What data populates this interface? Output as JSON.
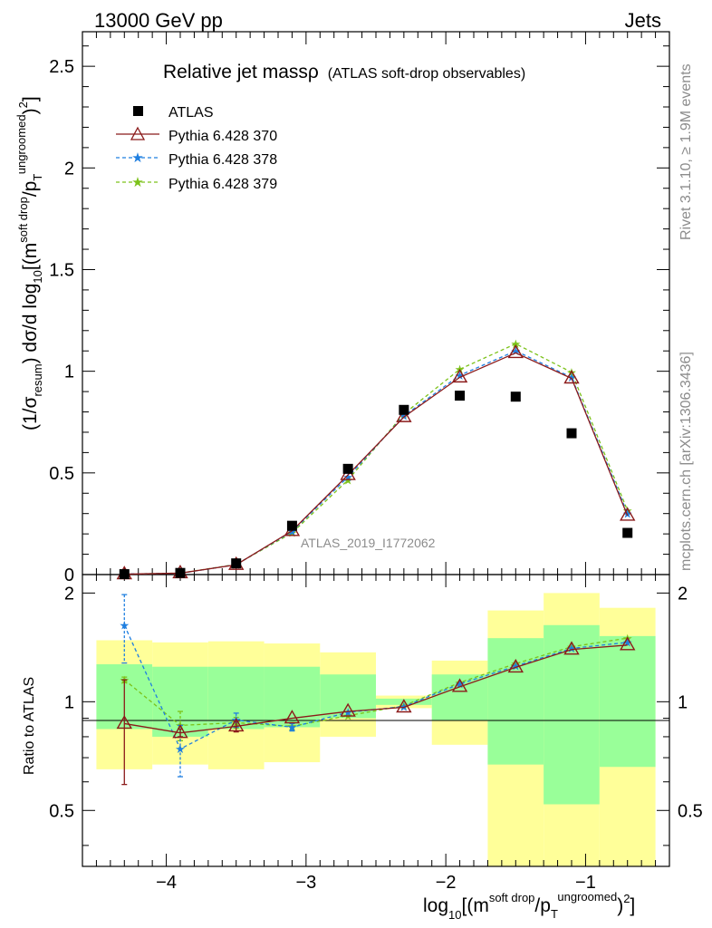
{
  "header": {
    "left": "13000 GeV pp",
    "right": "Jets"
  },
  "plot": {
    "title_main": "Relative jet massρ",
    "title_sub": "(ATLAS soft-drop observables)",
    "watermark": "ATLAS_2019_I1772062",
    "side_top": "Rivet 3.1.10, ≥ 1.9M events",
    "side_bottom": "mcplots.cern.ch [arXiv:1306.3436]"
  },
  "colors": {
    "data": "#000000",
    "py370": "#8b1a1a",
    "py378": "#1f7fe0",
    "py379": "#7cc21a",
    "band_outer": "#ffff99",
    "band_inner": "#99ff99"
  },
  "chart_data": [
    {
      "type": "line",
      "panel": "main",
      "ylabel_parts": [
        "(1/σ",
        "resum",
        ") dσ/d log",
        "10",
        "[(m",
        "soft drop",
        "/p",
        "T",
        "ungroomed",
        ")",
        "2",
        "]"
      ],
      "xlim": [
        -4.6,
        -0.4
      ],
      "ylim": [
        0,
        2.67
      ],
      "yticks": [
        0,
        0.5,
        1,
        1.5,
        2,
        2.5
      ],
      "ytick_labels": [
        "0",
        "0.5",
        "1",
        "1.5",
        "2",
        "2.5"
      ],
      "legend_position": "top-left",
      "x": [
        -4.3,
        -3.9,
        -3.5,
        -3.1,
        -2.7,
        -2.3,
        -1.9,
        -1.5,
        -1.1,
        -0.7
      ],
      "series": [
        {
          "name": "ATLAS",
          "values": [
            0.002,
            0.008,
            0.055,
            0.24,
            0.52,
            0.81,
            0.88,
            0.875,
            0.695,
            0.205
          ]
        },
        {
          "name": "Pythia 6.428 370",
          "values": [
            0.002,
            0.007,
            0.048,
            0.215,
            0.49,
            0.775,
            0.97,
            1.09,
            0.965,
            0.29
          ]
        },
        {
          "name": "Pythia 6.428 378",
          "values": [
            0.003,
            0.006,
            0.049,
            0.212,
            0.48,
            0.78,
            0.98,
            1.1,
            0.97,
            0.3
          ]
        },
        {
          "name": "Pythia 6.428 379",
          "values": [
            0.0025,
            0.007,
            0.05,
            0.205,
            0.465,
            0.79,
            1.01,
            1.135,
            0.995,
            0.315
          ]
        }
      ]
    },
    {
      "type": "line",
      "panel": "ratio",
      "xlabel_parts": [
        "log",
        "10",
        "[(m",
        "soft drop",
        "/p",
        "T",
        "ungroomed",
        ")",
        "2",
        "]"
      ],
      "ylabel": "Ratio to ATLAS",
      "xlim": [
        -4.6,
        -0.4
      ],
      "ylim": [
        0.35,
        2.25
      ],
      "yticks": [
        0.5,
        1,
        2
      ],
      "ytick_labels": [
        "0.5",
        "1",
        "2"
      ],
      "xticks": [
        -4,
        -3,
        -2,
        -1
      ],
      "xtick_labels": [
        "−4",
        "−3",
        "−2",
        "−1"
      ],
      "bins": [
        [
          -4.5,
          -4.1
        ],
        [
          -4.1,
          -3.7
        ],
        [
          -3.7,
          -3.3
        ],
        [
          -3.3,
          -2.9
        ],
        [
          -2.9,
          -2.5
        ],
        [
          -2.5,
          -2.1
        ],
        [
          -2.1,
          -1.7
        ],
        [
          -1.7,
          -1.3
        ],
        [
          -1.3,
          -0.9
        ],
        [
          -0.9,
          -0.5
        ]
      ],
      "band_outer": [
        [
          0.65,
          1.48
        ],
        [
          0.67,
          1.46
        ],
        [
          0.65,
          1.47
        ],
        [
          0.68,
          1.45
        ],
        [
          0.8,
          1.37
        ],
        [
          0.96,
          1.04
        ],
        [
          0.76,
          1.3
        ],
        [
          0.35,
          1.79
        ],
        [
          0.35,
          2.0
        ],
        [
          0.35,
          1.82
        ]
      ],
      "band_inner": [
        [
          0.84,
          1.27
        ],
        [
          0.8,
          1.25
        ],
        [
          0.84,
          1.25
        ],
        [
          0.85,
          1.25
        ],
        [
          0.9,
          1.19
        ],
        [
          0.98,
          1.02
        ],
        [
          0.89,
          1.19
        ],
        [
          0.67,
          1.5
        ],
        [
          0.52,
          1.63
        ],
        [
          0.66,
          1.52
        ]
      ],
      "series": [
        {
          "name": "Pythia 6.428 370",
          "values": [
            0.87,
            0.82,
            0.855,
            0.9,
            0.94,
            0.965,
            1.1,
            1.245,
            1.395,
            1.435
          ],
          "err": [
            0.28,
            0.02,
            0.03,
            0.01,
            0.01,
            0.01,
            0.01,
            0.01,
            0.01,
            0.01
          ]
        },
        {
          "name": "Pythia 6.428 378",
          "values": [
            1.63,
            0.74,
            0.89,
            0.85,
            0.935,
            0.97,
            1.12,
            1.255,
            1.405,
            1.46
          ],
          "err": [
            0.35,
            0.12,
            0.04,
            0.02,
            0.01,
            0.01,
            0.01,
            0.01,
            0.01,
            0.01
          ]
        },
        {
          "name": "Pythia 6.428 379",
          "values": [
            1.15,
            0.86,
            0.875,
            0.855,
            0.915,
            0.975,
            1.13,
            1.275,
            1.42,
            1.5
          ],
          "err": [
            0.02,
            0.08,
            0.03,
            0.02,
            0.01,
            0.01,
            0.01,
            0.01,
            0.01,
            0.01
          ]
        }
      ]
    }
  ]
}
